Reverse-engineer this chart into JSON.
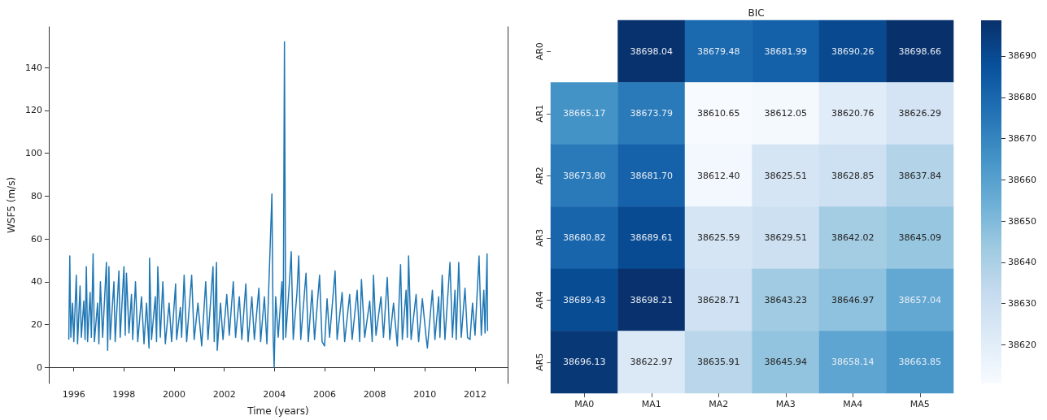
{
  "chart_data": [
    {
      "type": "line",
      "xlabel": "Time (years)",
      "ylabel": "WSF5 (m/s)",
      "xlim": [
        1995.0,
        2013.3
      ],
      "xticks": [
        1996,
        1998,
        2000,
        2002,
        2004,
        2006,
        2008,
        2010,
        2012
      ],
      "ylim": [
        -7.5,
        159
      ],
      "yticks": [
        0,
        20,
        40,
        60,
        80,
        100,
        120,
        140
      ],
      "marker": "none",
      "line_style": "solid",
      "series": [
        {
          "color": "#1f77b4",
          "x": [
            1995.8,
            1995.84,
            1995.88,
            1995.95,
            1996.0,
            1996.1,
            1996.15,
            1996.25,
            1996.3,
            1996.4,
            1996.45,
            1996.5,
            1996.55,
            1996.65,
            1996.7,
            1996.77,
            1996.82,
            1996.95,
            1997.0,
            1997.06,
            1997.15,
            1997.3,
            1997.35,
            1997.4,
            1997.45,
            1997.6,
            1997.65,
            1997.8,
            1997.85,
            1998.0,
            1998.05,
            1998.1,
            1998.2,
            1998.3,
            1998.35,
            1998.46,
            1998.55,
            1998.7,
            1998.8,
            1998.9,
            1999.0,
            1999.02,
            1999.1,
            1999.25,
            1999.3,
            1999.35,
            1999.45,
            1999.55,
            1999.65,
            1999.8,
            1999.9,
            2000.06,
            2000.1,
            2000.25,
            2000.3,
            2000.4,
            2000.5,
            2000.7,
            2000.8,
            2000.95,
            2001.1,
            2001.26,
            2001.35,
            2001.55,
            2001.6,
            2001.69,
            2001.72,
            2001.85,
            2001.95,
            2002.1,
            2002.2,
            2002.36,
            2002.45,
            2002.6,
            2002.7,
            2002.86,
            2002.95,
            2003.1,
            2003.2,
            2003.38,
            2003.45,
            2003.6,
            2003.7,
            2003.9,
            2003.95,
            2003.99,
            2004.05,
            2004.15,
            2004.3,
            2004.35,
            2004.4,
            2004.45,
            2004.6,
            2004.67,
            2004.75,
            2004.9,
            2004.97,
            2005.05,
            2005.26,
            2005.35,
            2005.5,
            2005.6,
            2005.8,
            2005.9,
            2006.0,
            2006.1,
            2006.2,
            2006.42,
            2006.5,
            2006.7,
            2006.8,
            2007.0,
            2007.1,
            2007.3,
            2007.4,
            2007.47,
            2007.6,
            2007.8,
            2007.9,
            2007.95,
            2008.05,
            2008.25,
            2008.35,
            2008.5,
            2008.6,
            2008.75,
            2008.9,
            2009.03,
            2009.1,
            2009.25,
            2009.3,
            2009.35,
            2009.45,
            2009.65,
            2009.75,
            2009.9,
            2010.05,
            2010.1,
            2010.3,
            2010.4,
            2010.55,
            2010.6,
            2010.69,
            2010.8,
            2011.0,
            2011.1,
            2011.2,
            2011.25,
            2011.35,
            2011.45,
            2011.6,
            2011.7,
            2011.8,
            2011.9,
            2012.0,
            2012.16,
            2012.25,
            2012.35,
            2012.4,
            2012.48,
            2012.5
          ],
          "values": [
            13,
            52,
            14,
            30,
            12,
            43,
            11,
            38,
            14,
            31,
            13,
            47,
            12,
            35,
            14,
            53,
            12,
            30,
            11,
            40,
            14,
            49,
            8,
            47,
            13,
            40,
            12,
            45,
            14,
            47,
            15,
            44,
            16,
            34,
            13,
            40,
            12,
            33,
            11,
            30,
            9,
            51,
            13,
            33,
            12,
            47,
            14,
            40,
            11,
            30,
            12,
            39,
            13,
            28,
            14,
            43,
            12,
            43,
            13,
            30,
            10,
            40,
            13,
            47,
            12,
            49,
            8,
            30,
            13,
            34,
            15,
            40,
            14,
            33,
            13,
            39,
            12,
            33,
            13,
            37,
            12,
            33,
            11,
            81,
            15,
            0,
            33,
            14,
            40,
            13,
            152,
            14,
            40,
            54,
            13,
            35,
            52,
            13,
            44,
            12,
            36,
            13,
            43,
            12,
            10,
            32,
            14,
            45,
            13,
            35,
            12,
            34,
            13,
            36,
            12,
            41,
            14,
            31,
            12,
            43,
            15,
            33,
            14,
            42,
            13,
            30,
            10,
            48,
            13,
            36,
            14,
            52,
            13,
            34,
            12,
            32,
            14,
            9,
            36,
            13,
            33,
            14,
            43,
            13,
            49,
            14,
            36,
            13,
            49,
            14,
            37,
            14,
            13,
            30,
            15,
            52,
            15,
            36,
            16,
            53,
            17
          ]
        }
      ]
    },
    {
      "type": "heatmap",
      "title": "BIC",
      "categories": [
        "MA0",
        "MA1",
        "MA2",
        "MA3",
        "MA4",
        "MA5"
      ],
      "y_categories": [
        "AR0",
        "AR1",
        "AR2",
        "AR3",
        "AR4",
        "AR5"
      ],
      "cells": [
        [
          null,
          38698.04,
          38679.48,
          38681.99,
          38690.26,
          38698.66
        ],
        [
          38665.17,
          38673.79,
          38610.65,
          38612.05,
          38620.76,
          38626.29
        ],
        [
          38673.8,
          38681.7,
          38612.4,
          38625.51,
          38628.85,
          38637.84
        ],
        [
          38680.82,
          38689.61,
          38625.59,
          38629.51,
          38642.02,
          38645.09
        ],
        [
          38689.43,
          38698.21,
          38628.71,
          38643.23,
          38646.97,
          38657.04
        ],
        [
          38696.13,
          38622.97,
          38635.91,
          38645.94,
          38658.14,
          38663.85
        ]
      ],
      "cell_labels": [
        [
          null,
          "38698.04",
          "38679.48",
          "38681.99",
          "38690.26",
          "38698.66"
        ],
        [
          "38665.17",
          "38673.79",
          "38610.65",
          "38612.05",
          "38620.76",
          "38626.29"
        ],
        [
          "38673.80",
          "38681.70",
          "38612.40",
          "38625.51",
          "38628.85",
          "38637.84"
        ],
        [
          "38680.82",
          "38689.61",
          "38625.59",
          "38629.51",
          "38642.02",
          "38645.09"
        ],
        [
          "38689.43",
          "38698.21",
          "38628.71",
          "38643.23",
          "38646.97",
          "38657.04"
        ],
        [
          "38696.13",
          "38622.97",
          "38635.91",
          "38645.94",
          "38658.14",
          "38663.85"
        ]
      ],
      "clim": [
        38610.65,
        38698.66
      ],
      "cticks": [
        38620,
        38630,
        38640,
        38650,
        38660,
        38670,
        38680,
        38690
      ],
      "data_labels": true
    }
  ]
}
